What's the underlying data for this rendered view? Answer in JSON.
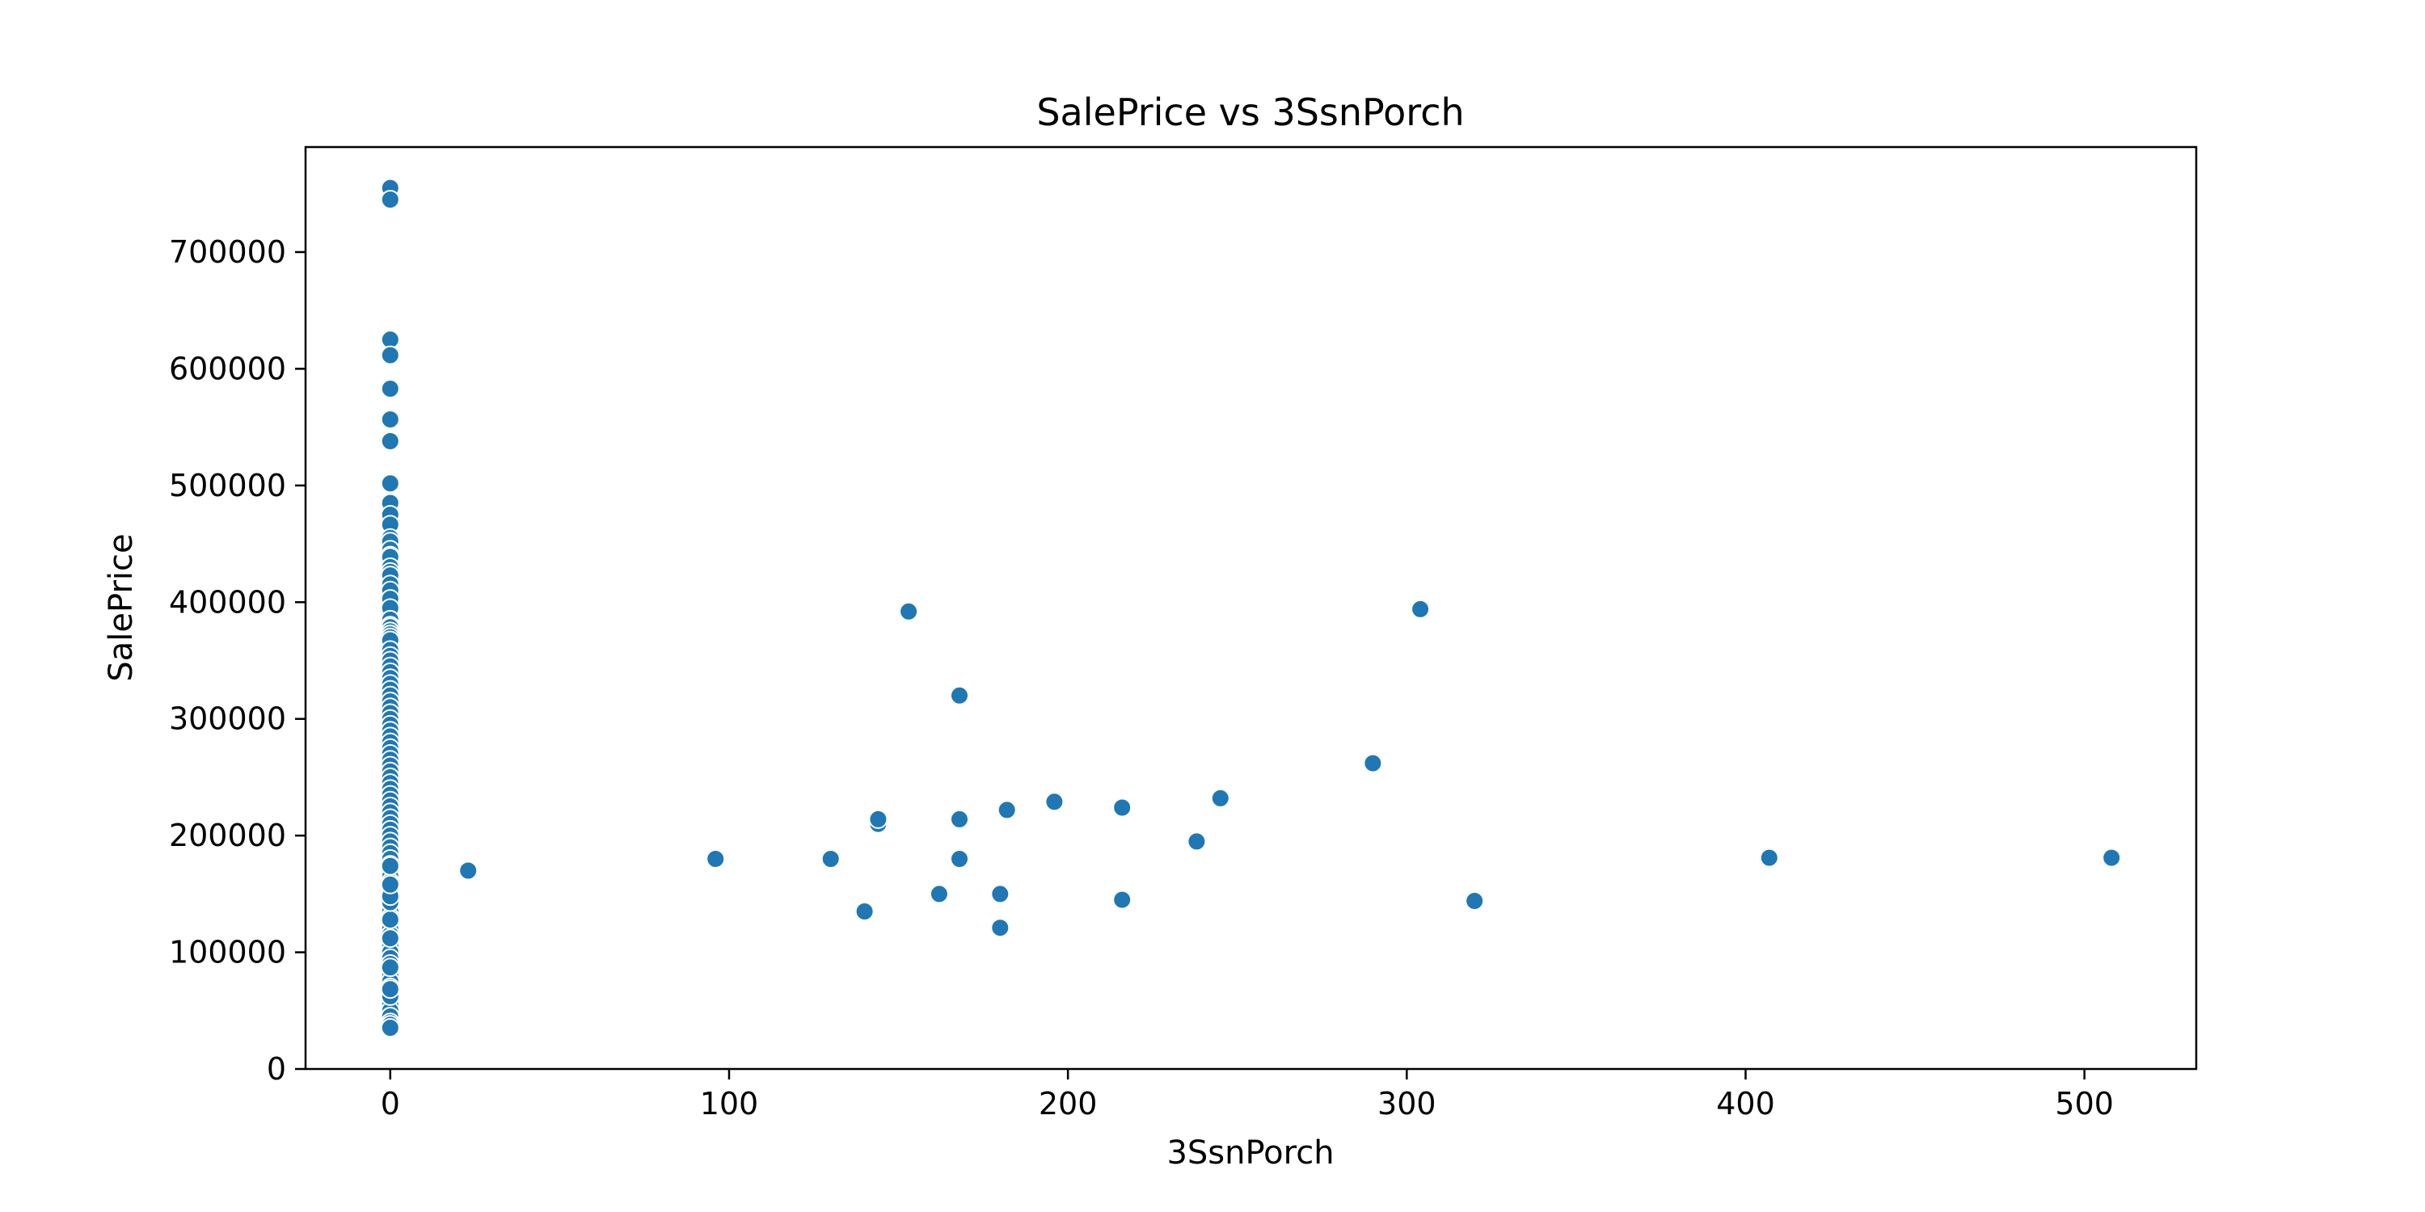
{
  "chart_data": {
    "type": "scatter",
    "title": "SalePrice vs 3SsnPorch",
    "xlabel": "3SsnPorch",
    "ylabel": "SalePrice",
    "xlim": [
      -25,
      533
    ],
    "ylim": [
      0,
      790000
    ],
    "xticks": [
      0,
      100,
      200,
      300,
      400,
      500
    ],
    "yticks": [
      0,
      100000,
      200000,
      300000,
      400000,
      500000,
      600000,
      700000
    ],
    "grid": false,
    "legend": "none",
    "color": "#1f77b4",
    "series": [
      {
        "x": [
          0,
          0,
          0,
          0,
          0,
          0,
          0,
          0,
          0,
          0,
          0,
          0,
          0,
          0,
          0,
          0,
          0,
          0,
          0,
          0,
          0,
          0,
          0,
          0,
          0,
          0,
          0,
          0,
          0,
          0,
          0,
          0,
          0,
          0,
          0,
          0,
          0,
          0,
          0,
          0,
          0,
          0,
          0,
          0,
          0,
          0,
          0,
          0,
          0,
          0,
          0,
          0,
          0,
          0,
          0,
          0,
          0,
          0,
          0,
          0,
          0,
          0,
          0,
          0,
          0,
          0,
          0,
          0,
          0,
          0,
          0,
          0,
          0,
          0,
          0,
          0,
          0,
          0,
          0,
          0,
          0,
          0,
          0,
          0,
          0,
          0,
          0,
          0,
          0,
          0,
          0,
          0,
          0,
          0,
          0,
          0,
          0,
          0,
          0,
          0,
          0,
          0,
          0,
          0,
          0,
          0,
          23,
          96,
          130,
          140,
          144,
          144,
          153,
          162,
          168,
          168,
          168,
          180,
          180,
          182,
          196,
          216,
          216,
          238,
          245,
          290,
          304,
          320,
          407,
          508
        ],
        "y": [
          755000,
          745000,
          625000,
          611657,
          582933,
          556581,
          538000,
          501837,
          485000,
          475000,
          466500,
          455000,
          451950,
          445000,
          440000,
          438780,
          430000,
          426000,
          423000,
          415298,
          410000,
          402861,
          395000,
          385000,
          380000,
          378500,
          375000,
          372402,
          369900,
          367294,
          359100,
          354000,
          350000,
          345000,
          340000,
          335000,
          330000,
          325000,
          320000,
          315000,
          310000,
          305000,
          300000,
          295000,
          290000,
          285000,
          280000,
          275000,
          270000,
          265000,
          260000,
          255000,
          250000,
          245000,
          240000,
          235000,
          230000,
          225000,
          220000,
          215000,
          210000,
          205000,
          200000,
          195000,
          190000,
          185000,
          180000,
          175000,
          170000,
          165000,
          160000,
          155000,
          150000,
          145000,
          140000,
          135000,
          130000,
          125000,
          120000,
          115000,
          110000,
          105000,
          100000,
          95000,
          90000,
          85000,
          80000,
          75000,
          70000,
          65000,
          60000,
          55000,
          50000,
          45000,
          40000,
          37900,
          35311,
          62383,
          68400,
          87000,
          112000,
          128000,
          143000,
          148000,
          158000,
          174000,
          170000,
          180000,
          180000,
          135000,
          210000,
          214000,
          392000,
          150000,
          320000,
          214000,
          180000,
          150000,
          121000,
          222000,
          229000,
          224000,
          145000,
          195000,
          232000,
          262000,
          394000,
          144000,
          181000,
          181000
        ]
      }
    ]
  }
}
